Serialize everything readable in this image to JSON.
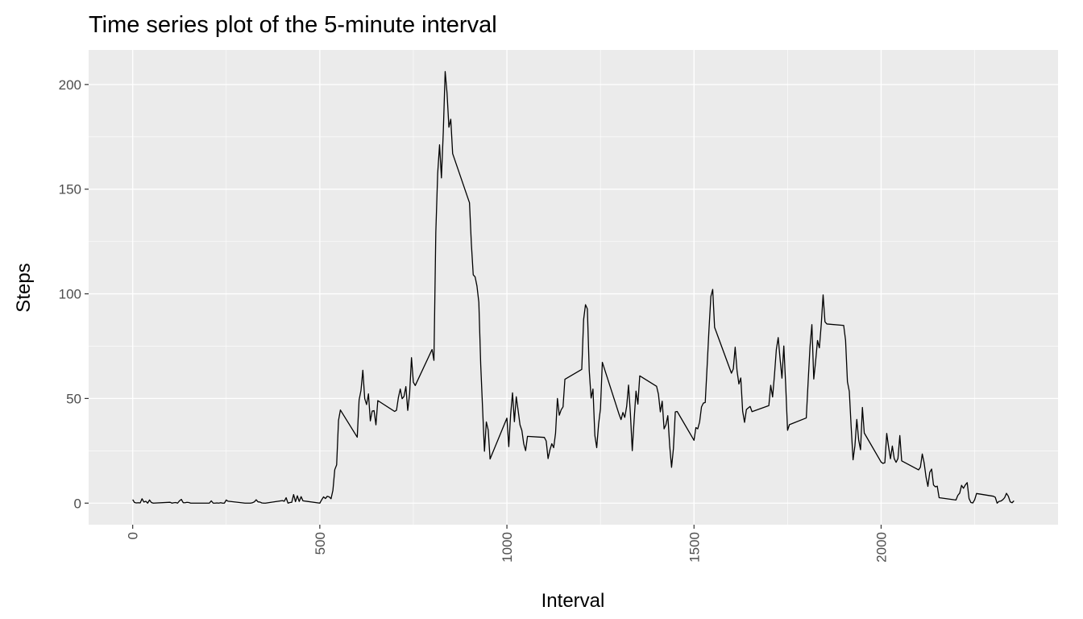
{
  "chart_data": {
    "type": "line",
    "title": "Time series plot of the 5-minute interval",
    "xlabel": "Interval",
    "ylabel": "Steps",
    "xlim": [
      -117.75,
      2472.75
    ],
    "ylim": [
      -10.3,
      216.5
    ],
    "xticks": [
      0,
      500,
      1000,
      1500,
      2000
    ],
    "yticks": [
      0,
      50,
      100,
      150,
      200
    ],
    "xminor": [
      250,
      750,
      1250,
      1750,
      2250
    ],
    "yminor": [
      25,
      75,
      125,
      175
    ],
    "grid": true,
    "panel_color": "#ebebeb",
    "x": [
      0,
      5,
      10,
      15,
      20,
      25,
      30,
      35,
      40,
      45,
      50,
      55,
      100,
      105,
      110,
      115,
      120,
      125,
      130,
      135,
      140,
      145,
      150,
      155,
      200,
      205,
      210,
      215,
      220,
      225,
      230,
      235,
      240,
      245,
      250,
      255,
      300,
      305,
      310,
      315,
      320,
      325,
      330,
      335,
      340,
      345,
      350,
      355,
      400,
      405,
      410,
      415,
      420,
      425,
      430,
      435,
      440,
      445,
      450,
      455,
      500,
      505,
      510,
      515,
      520,
      525,
      530,
      535,
      540,
      545,
      550,
      555,
      600,
      605,
      610,
      615,
      620,
      625,
      630,
      635,
      640,
      645,
      650,
      655,
      700,
      705,
      710,
      715,
      720,
      725,
      730,
      735,
      740,
      745,
      750,
      755,
      800,
      805,
      810,
      815,
      820,
      825,
      830,
      835,
      840,
      845,
      850,
      855,
      900,
      905,
      910,
      915,
      920,
      925,
      930,
      935,
      940,
      945,
      950,
      955,
      1000,
      1005,
      1010,
      1015,
      1020,
      1025,
      1030,
      1035,
      1040,
      1045,
      1050,
      1055,
      1100,
      1105,
      1110,
      1115,
      1120,
      1125,
      1130,
      1135,
      1140,
      1145,
      1150,
      1155,
      1200,
      1205,
      1210,
      1215,
      1220,
      1225,
      1230,
      1235,
      1240,
      1245,
      1250,
      1255,
      1300,
      1305,
      1310,
      1315,
      1320,
      1325,
      1330,
      1335,
      1340,
      1345,
      1350,
      1355,
      1400,
      1405,
      1410,
      1415,
      1420,
      1425,
      1430,
      1435,
      1440,
      1445,
      1450,
      1455,
      1500,
      1505,
      1510,
      1515,
      1520,
      1525,
      1530,
      1535,
      1540,
      1545,
      1550,
      1555,
      1600,
      1605,
      1610,
      1615,
      1620,
      1625,
      1630,
      1635,
      1640,
      1645,
      1650,
      1655,
      1700,
      1705,
      1710,
      1715,
      1720,
      1725,
      1730,
      1735,
      1740,
      1745,
      1750,
      1755,
      1800,
      1805,
      1810,
      1815,
      1820,
      1825,
      1830,
      1835,
      1840,
      1845,
      1850,
      1855,
      1900,
      1905,
      1910,
      1915,
      1920,
      1925,
      1930,
      1935,
      1940,
      1945,
      1950,
      1955,
      2000,
      2005,
      2010,
      2015,
      2020,
      2025,
      2030,
      2035,
      2040,
      2045,
      2050,
      2055,
      2100,
      2105,
      2110,
      2115,
      2120,
      2125,
      2130,
      2135,
      2140,
      2145,
      2150,
      2155,
      2200,
      2205,
      2210,
      2215,
      2220,
      2225,
      2230,
      2235,
      2240,
      2245,
      2250,
      2255,
      2300,
      2305,
      2310,
      2315,
      2320,
      2325,
      2330,
      2335,
      2340,
      2345,
      2350,
      2355
    ],
    "series": [
      {
        "name": "Steps",
        "color": "#000000",
        "values": [
          1.7,
          0.3,
          0.1,
          0.2,
          0.1,
          2.1,
          0.5,
          0.9,
          0,
          1.5,
          0.3,
          0,
          0.4,
          0,
          0.2,
          0.3,
          0,
          1.1,
          1.8,
          0.2,
          0.2,
          0.4,
          0.3,
          0,
          0,
          0,
          1.1,
          0,
          0,
          0.1,
          0,
          0.2,
          0,
          0,
          1.5,
          0.9,
          0,
          0,
          0,
          0,
          0.2,
          0.6,
          1.6,
          0.6,
          0.5,
          0.1,
          0,
          0,
          1.2,
          0.9,
          2.6,
          0,
          0.3,
          0.4,
          4.1,
          0.7,
          3.5,
          0.8,
          3.1,
          1.1,
          0,
          1.6,
          3,
          2.2,
          3.3,
          3,
          2.1,
          6.1,
          16,
          18.3,
          39.5,
          44.5,
          31.5,
          49.3,
          53.8,
          63.5,
          50,
          47.1,
          52.2,
          39.3,
          44,
          44.2,
          37.4,
          49,
          43.8,
          44.4,
          50.5,
          54.5,
          49.9,
          51,
          55.7,
          44.3,
          52.3,
          69.5,
          57.8,
          56.2,
          73.4,
          68.2,
          129.4,
          157.5,
          171.2,
          155.4,
          177.3,
          206.2,
          195.9,
          179.6,
          183.4,
          167,
          143.5,
          124,
          109.1,
          108.1,
          103.7,
          95.9,
          66.2,
          45.2,
          24.8,
          38.8,
          35,
          21.1,
          40.6,
          27,
          42.4,
          52.7,
          38.9,
          50.8,
          44.3,
          37.4,
          34.7,
          28.3,
          25.1,
          31.9,
          31.4,
          29.7,
          21.3,
          25.5,
          28.4,
          26.5,
          33.4,
          49.98,
          42,
          44.6,
          46,
          59.2,
          63.9,
          87.7,
          94.8,
          92.8,
          63.4,
          50.2,
          54.5,
          32.4,
          26.5,
          37.7,
          45.1,
          67.3,
          42.3,
          39.9,
          43.3,
          40.98,
          46.2,
          56.4,
          42.8,
          25.1,
          39.97,
          53.5,
          47.3,
          60.8,
          55.8,
          51.96,
          43.6,
          48.7,
          35.5,
          37.5,
          41.8,
          27.5,
          17.1,
          26.1,
          43.6,
          43.8,
          30,
          36.1,
          35.5,
          38.8,
          45.96,
          47.8,
          48.1,
          65.3,
          82.9,
          98.7,
          102.1,
          84,
          62.1,
          64.1,
          74.5,
          63.2,
          56.9,
          59.8,
          43.9,
          38.6,
          44.7,
          45.5,
          46.2,
          43.7,
          46.6,
          56.3,
          50.7,
          61.2,
          73.4,
          79.1,
          68.9,
          59.7,
          75.1,
          56.5,
          34.8,
          37.5,
          40.7,
          58,
          74.7,
          85.3,
          59.3,
          67.8,
          77.7,
          74.2,
          85.3,
          99.5,
          86.6,
          85.6,
          84.9,
          77.8,
          58,
          53.4,
          36.3,
          20.7,
          27.4,
          40,
          30.2,
          25.5,
          45.7,
          33.5,
          19.6,
          19,
          19.3,
          33.3,
          26.8,
          21.2,
          27.3,
          21.3,
          19.5,
          21.3,
          32.3,
          20.2,
          15.9,
          17.2,
          23.5,
          19.2,
          12.5,
          8,
          14.7,
          16.3,
          8.7,
          7.8,
          8.1,
          2.6,
          1.5,
          3.7,
          4.8,
          8.5,
          7.1,
          8.7,
          9.8,
          2.2,
          0.3,
          0.1,
          1.6,
          4.6,
          3.3,
          2.8,
          0,
          0.8,
          1,
          1.6,
          2.6,
          4.7,
          3.3,
          0.6,
          0.2,
          1.1
        ]
      }
    ]
  }
}
